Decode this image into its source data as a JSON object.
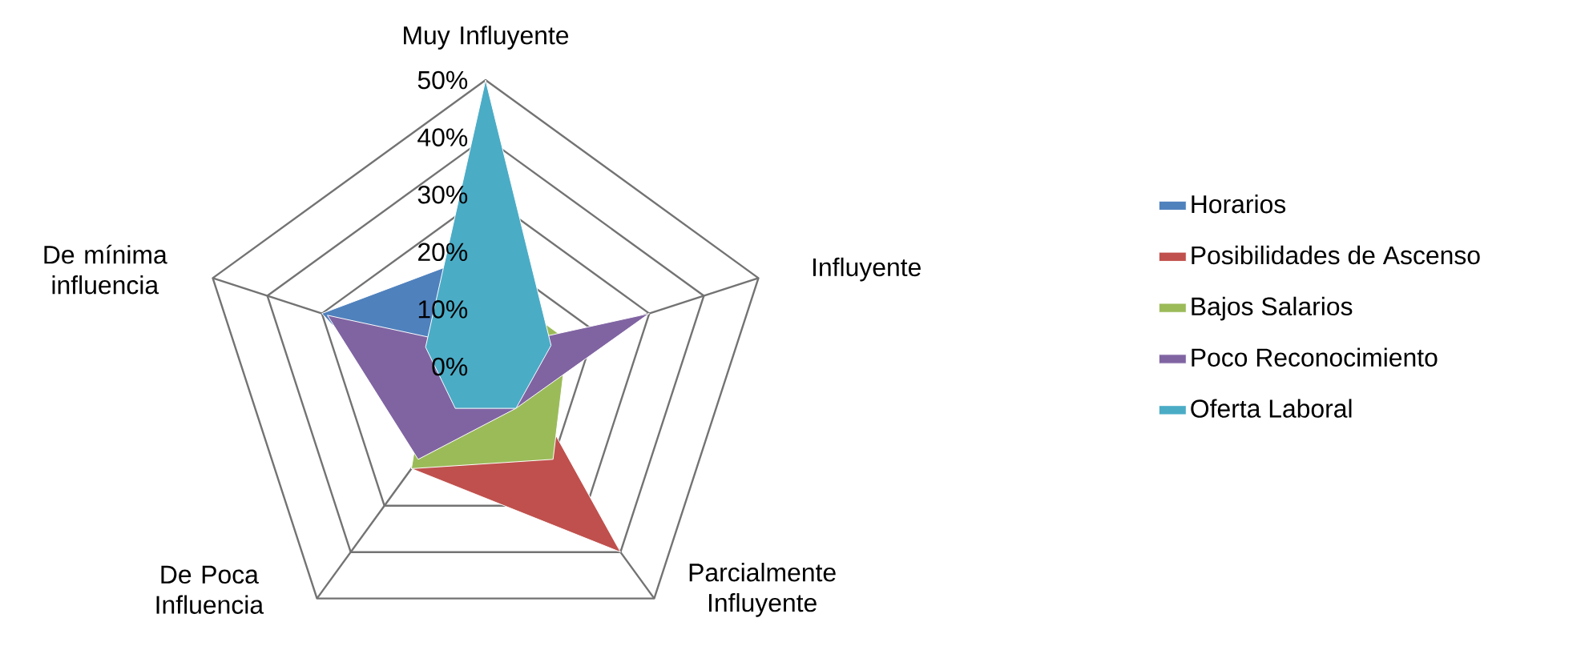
{
  "chart_data": {
    "type": "radar",
    "categories": [
      "Muy Influyente",
      "Influyente",
      "Parcialmente Influyente",
      "De Poca Influencia",
      "De mínima influencia"
    ],
    "series": [
      {
        "name": "Horarios",
        "color": "#4f81bd",
        "values": [
          20,
          5,
          5,
          15,
          30
        ]
      },
      {
        "name": "Posibilidades de Ascenso",
        "color": "#c0504d",
        "values": [
          5,
          5,
          40,
          22,
          5
        ]
      },
      {
        "name": "Bajos Salarios",
        "color": "#9bbb59",
        "values": [
          15,
          15,
          20,
          22,
          10
        ]
      },
      {
        "name": "Poco Reconocimiento",
        "color": "#8064a2",
        "values": [
          3,
          30,
          9,
          20,
          29
        ]
      },
      {
        "name": "Oferta Laboral",
        "color": "#4bacc6",
        "values": [
          50,
          12,
          9,
          9,
          11
        ]
      }
    ],
    "ylim": [
      0,
      50
    ],
    "yticks": [
      {
        "value": 0,
        "label": "0%"
      },
      {
        "value": 10,
        "label": "10%"
      },
      {
        "value": 20,
        "label": "20%"
      },
      {
        "value": 30,
        "label": "30%"
      },
      {
        "value": 40,
        "label": "40%"
      },
      {
        "value": 50,
        "label": "50%"
      }
    ],
    "grid": true,
    "legend": "right"
  }
}
